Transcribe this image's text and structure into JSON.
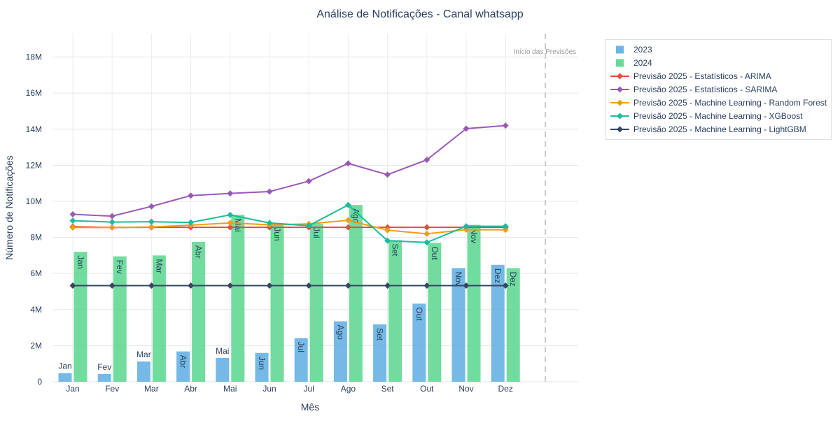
{
  "chart_data": {
    "type": "bar",
    "title": "Análise de Notificações - Canal whatsapp",
    "xlabel": "Mês",
    "ylabel": "Número de Notificações",
    "categories": [
      "Jan",
      "Fev",
      "Mar",
      "Abr",
      "Mai",
      "Jun",
      "Jul",
      "Ago",
      "Set",
      "Out",
      "Nov",
      "Dez"
    ],
    "ylim": [
      0,
      19300000
    ],
    "yticks": [
      0,
      2000000,
      4000000,
      6000000,
      8000000,
      10000000,
      12000000,
      14000000,
      16000000,
      18000000
    ],
    "ytick_labels": [
      "0",
      "2M",
      "4M",
      "6M",
      "8M",
      "10M",
      "12M",
      "14M",
      "16M",
      "18M"
    ],
    "grid": true,
    "legend_position": "top-right, outside plot",
    "bar_series": [
      {
        "name": "2023",
        "color": "#5dade2",
        "values": [
          480000,
          430000,
          1120000,
          1680000,
          1320000,
          1600000,
          2420000,
          3350000,
          3180000,
          4330000,
          6300000,
          6480000
        ],
        "labels": [
          "Jan",
          "Fev",
          "Mar",
          "Abr",
          "Mai",
          "Jun",
          "Jul",
          "Ago",
          "Set",
          "Out",
          "Nov",
          "Dez"
        ]
      },
      {
        "name": "2024",
        "color": "#58d68d",
        "values": [
          7200000,
          6950000,
          7000000,
          7750000,
          9250000,
          8750000,
          8750000,
          9800000,
          7850000,
          7700000,
          8700000,
          6300000
        ],
        "labels": [
          "Jan",
          "Fev",
          "Mar",
          "Abr",
          "Mai",
          "Jun",
          "Jul",
          "Ago",
          "Set",
          "Out",
          "Nov",
          "Dez"
        ]
      }
    ],
    "line_series": [
      {
        "name": "Previsão 2025 - Estatísticos - ARIMA",
        "color": "#e74c3c",
        "values": [
          8600000,
          8550000,
          8560000,
          8560000,
          8560000,
          8560000,
          8560000,
          8560000,
          8560000,
          8560000,
          8560000,
          8560000
        ]
      },
      {
        "name": "Previsão 2025 - Estatísticos - SARIMA",
        "color": "#9b59b6",
        "values": [
          9280000,
          9180000,
          9720000,
          10320000,
          10440000,
          10540000,
          11120000,
          12100000,
          11480000,
          12300000,
          14030000,
          14200000
        ]
      },
      {
        "name": "Previsão 2025 - Machine Learning - Random Forest",
        "color": "#f39c12",
        "values": [
          8550000,
          8550000,
          8580000,
          8680000,
          8800000,
          8700000,
          8750000,
          8950000,
          8400000,
          8200000,
          8430000,
          8420000
        ]
      },
      {
        "name": "Previsão 2025 - Machine Learning - XGBoost",
        "color": "#1abc9c",
        "values": [
          8930000,
          8850000,
          8870000,
          8830000,
          9250000,
          8800000,
          8650000,
          9800000,
          7820000,
          7720000,
          8620000,
          8620000
        ]
      },
      {
        "name": "Previsão 2025 - Machine Learning - LightGBM",
        "color": "#34495e",
        "values": [
          5330000,
          5330000,
          5330000,
          5330000,
          5330000,
          5330000,
          5330000,
          5330000,
          5330000,
          5330000,
          5330000,
          5330000
        ]
      }
    ],
    "annotation": {
      "text": "Início das Previsões",
      "line_color": "#cccccc"
    }
  }
}
